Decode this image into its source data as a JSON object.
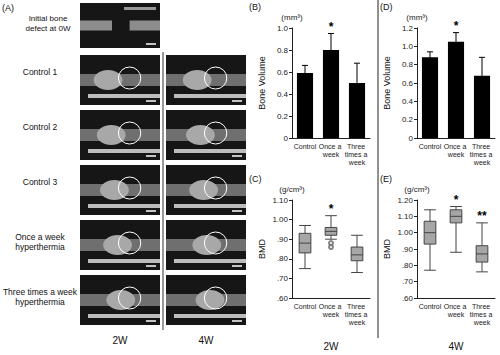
{
  "panel_a": {
    "label": "(A)",
    "initial": "Initial bone defect at 0W",
    "rows": [
      "Control 1",
      "Control 2",
      "Control 3",
      "Once a week hyperthermia",
      "Three times a week hyperthermia"
    ],
    "columns": [
      "2W",
      "4W"
    ]
  },
  "chart_data": [
    {
      "panel": "(B)",
      "type": "bar",
      "y_label": "Bone Volume",
      "unit": "(mm³)",
      "categories": [
        "Control",
        "Once a week",
        "Three times a week"
      ],
      "values": [
        0.59,
        0.8,
        0.5
      ],
      "errors": [
        0.07,
        0.15,
        0.18
      ],
      "color": "#000000",
      "ylim": [
        0,
        1.0
      ],
      "yticks": [
        0,
        0.2,
        0.4,
        0.6,
        0.8,
        {
          "value": 1.0,
          "label": "1.0"
        }
      ],
      "grid": false,
      "annotations": [
        {
          "category": "Once a week",
          "text": "*"
        }
      ]
    },
    {
      "panel": "(C)",
      "type": "boxplot",
      "y_label": "BMD",
      "unit": "(g/cm³)",
      "x_label": "2W",
      "categories": [
        "Control",
        "Once a week",
        "Three times a week"
      ],
      "values": [
        [
          0.75,
          0.83,
          0.88,
          0.93,
          0.97
        ],
        [
          0.9,
          0.92,
          0.94,
          0.96,
          1.02
        ],
        [
          0.73,
          0.79,
          0.82,
          0.86,
          0.92
        ]
      ],
      "outliers": [
        {
          "category": "Once a week",
          "values": [
            0.88,
            0.86
          ]
        }
      ],
      "color": "#a6a6a6",
      "ylim": [
        0.6,
        1.1
      ],
      "yticks": [
        {
          "value": 0.6,
          "label": ".60"
        },
        {
          "value": 0.7,
          "label": ".70"
        },
        {
          "value": 0.8,
          "label": ".80"
        },
        {
          "value": 0.9,
          "label": ".90"
        },
        {
          "value": 1.0,
          "label": "1.00"
        },
        {
          "value": 1.1,
          "label": "1.10"
        }
      ],
      "grid": false,
      "annotations": [
        {
          "category": "Once a week",
          "text": "*"
        }
      ]
    },
    {
      "panel": "(D)",
      "type": "bar",
      "y_label": "Bone Volume",
      "unit": "(mm³)",
      "categories": [
        "Control",
        "Once a week",
        "Three times a week"
      ],
      "values": [
        0.88,
        1.05,
        0.68
      ],
      "errors": [
        0.06,
        0.1,
        0.2
      ],
      "color": "#000000",
      "ylim": [
        0,
        1.2
      ],
      "yticks": [
        0,
        0.2,
        0.4,
        0.6,
        0.8,
        {
          "value": 1.0,
          "label": "1.0"
        },
        1.2
      ],
      "grid": false,
      "annotations": [
        {
          "category": "Once a week",
          "text": "*"
        }
      ]
    },
    {
      "panel": "(E)",
      "type": "boxplot",
      "y_label": "BMD",
      "unit": "(g/cm³)",
      "x_label": "4W",
      "categories": [
        "Control",
        "Once a week",
        "Three times a week"
      ],
      "values": [
        [
          0.77,
          0.93,
          1.0,
          1.07,
          1.14
        ],
        [
          0.88,
          1.06,
          1.1,
          1.14,
          1.16
        ],
        [
          0.76,
          0.82,
          0.87,
          0.92,
          1.06
        ]
      ],
      "color": "#a6a6a6",
      "ylim": [
        0.6,
        1.2
      ],
      "yticks": [
        {
          "value": 0.6,
          "label": ".60"
        },
        {
          "value": 0.7,
          "label": ".70"
        },
        {
          "value": 0.8,
          "label": ".80"
        },
        {
          "value": 0.9,
          "label": ".90"
        },
        {
          "value": 1.0,
          "label": "1.00"
        },
        {
          "value": 1.1,
          "label": "1.10"
        },
        {
          "value": 1.2,
          "label": "1.20"
        }
      ],
      "grid": false,
      "annotations": [
        {
          "category": "Once a week",
          "text": "*"
        },
        {
          "category": "Three times a week",
          "text": "**"
        }
      ]
    }
  ]
}
